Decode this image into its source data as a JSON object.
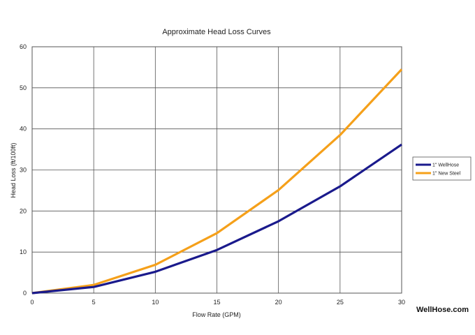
{
  "chart_data": {
    "type": "line",
    "title": "Approximate Head Loss Curves",
    "xlabel": "Flow Rate (GPM)",
    "ylabel": "Head Loss (ft/100ft)",
    "xlim": [
      0,
      30
    ],
    "ylim": [
      0,
      60
    ],
    "x_ticks": [
      0,
      5,
      10,
      15,
      20,
      25,
      30
    ],
    "y_ticks": [
      0,
      10,
      20,
      30,
      40,
      50,
      60
    ],
    "grid": true,
    "legend_position": "right",
    "x": [
      0,
      5,
      10,
      15,
      20,
      25,
      30
    ],
    "series": [
      {
        "name": "1\" WellHose",
        "color": "#1a1a8c",
        "values": [
          0,
          1.5,
          5.2,
          10.5,
          17.5,
          26,
          36.2
        ]
      },
      {
        "name": "1\" New Steel",
        "color": "#f5a01a",
        "values": [
          0,
          2,
          6.9,
          14.6,
          25.1,
          38.5,
          54.5
        ]
      }
    ]
  },
  "watermark": "WellHose.com"
}
